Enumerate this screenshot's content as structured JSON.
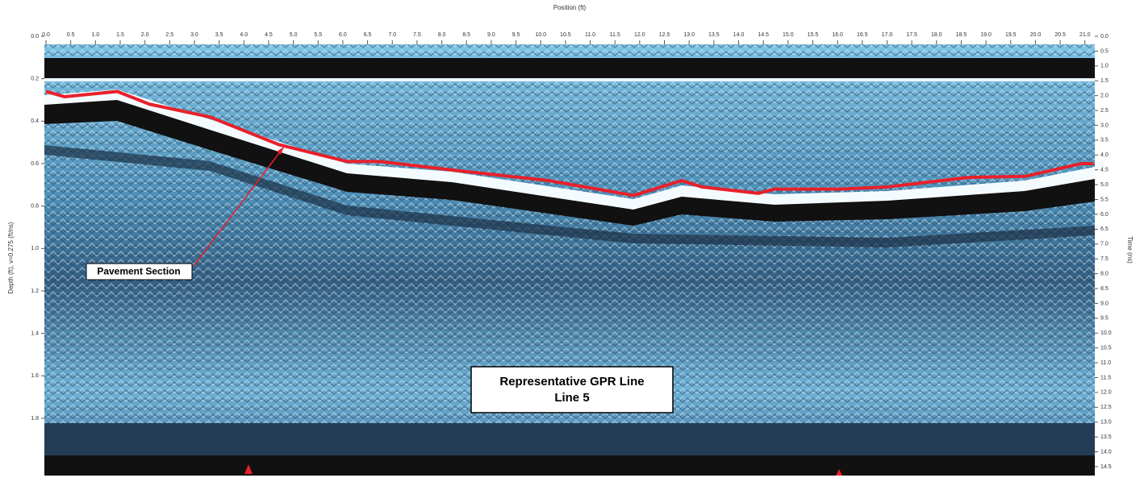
{
  "chart_data": {
    "type": "line",
    "xlabel": "Position (ft)",
    "ylabel": "Depth (ft), v=0.275 (ft/ns)",
    "y2label": "Time (ns)",
    "annotations": [
      "Pavement Section",
      "Representative GPR Line",
      "Line 5"
    ],
    "x": [
      0,
      0.38,
      1.44,
      2.09,
      3.31,
      4.7,
      6.08,
      6.74,
      8.2,
      10.16,
      11.88,
      12.85,
      13.26,
      14.4,
      14.73,
      16.04,
      17.01,
      18.65,
      19.79,
      20.93,
      21.17
    ],
    "series": [
      {
        "color": "#e8202a",
        "values": [
          0.26,
          0.285,
          0.26,
          0.32,
          0.38,
          0.51,
          0.59,
          0.59,
          0.63,
          0.68,
          0.75,
          0.68,
          0.71,
          0.74,
          0.72,
          0.72,
          0.71,
          0.665,
          0.66,
          0.6,
          0.6
        ]
      }
    ],
    "xlim": [
      0,
      21.2
    ],
    "ylim": [
      0,
      2.07
    ],
    "y2lim": [
      0,
      14.8
    ],
    "xticks": [
      {
        "value": 0,
        "label": "0.0"
      },
      {
        "value": 0.5,
        "label": "0.5"
      },
      {
        "value": 1,
        "label": "1.0"
      },
      {
        "value": 1.5,
        "label": "1.5"
      },
      {
        "value": 2,
        "label": "2.0"
      },
      {
        "value": 2.5,
        "label": "2.5"
      },
      {
        "value": 3,
        "label": "3.0"
      },
      {
        "value": 3.5,
        "label": "3.5"
      },
      {
        "value": 4,
        "label": "4.0"
      },
      {
        "value": 4.5,
        "label": "4.5"
      },
      {
        "value": 5,
        "label": "5.0"
      },
      {
        "value": 5.5,
        "label": "5.5"
      },
      {
        "value": 6,
        "label": "6.0"
      },
      {
        "value": 6.5,
        "label": "6.5"
      },
      {
        "value": 7,
        "label": "7.0"
      },
      {
        "value": 7.5,
        "label": "7.5"
      },
      {
        "value": 8,
        "label": "8.0"
      },
      {
        "value": 8.5,
        "label": "8.5"
      },
      {
        "value": 9,
        "label": "9.0"
      },
      {
        "value": 9.5,
        "label": "9.5"
      },
      {
        "value": 10,
        "label": "10.0"
      },
      {
        "value": 10.5,
        "label": "10.5"
      },
      {
        "value": 11,
        "label": "11.0"
      },
      {
        "value": 11.5,
        "label": "11.5"
      },
      {
        "value": 12,
        "label": "12.0"
      },
      {
        "value": 12.5,
        "label": "12.5"
      },
      {
        "value": 13,
        "label": "13.0"
      },
      {
        "value": 13.5,
        "label": "13.5"
      },
      {
        "value": 14,
        "label": "14.0"
      },
      {
        "value": 14.5,
        "label": "14.5"
      },
      {
        "value": 15,
        "label": "15.0"
      },
      {
        "value": 15.5,
        "label": "15.5"
      },
      {
        "value": 16,
        "label": "16.0"
      },
      {
        "value": 16.5,
        "label": "16.5"
      },
      {
        "value": 17,
        "label": "17.0"
      },
      {
        "value": 17.5,
        "label": "17.5"
      },
      {
        "value": 18,
        "label": "18.0"
      },
      {
        "value": 18.5,
        "label": "18.5"
      },
      {
        "value": 19,
        "label": "19.0"
      },
      {
        "value": 19.5,
        "label": "19.5"
      },
      {
        "value": 20,
        "label": "20.0"
      },
      {
        "value": 20.5,
        "label": "20.5"
      },
      {
        "value": 21,
        "label": "21.0"
      }
    ],
    "yticks": [
      {
        "value": 0,
        "label": "0.0"
      },
      {
        "value": 0.2,
        "label": "0.2"
      },
      {
        "value": 0.4,
        "label": "0.4"
      },
      {
        "value": 0.6,
        "label": "0.6"
      },
      {
        "value": 0.8,
        "label": "0.8"
      },
      {
        "value": 1,
        "label": "1.0"
      },
      {
        "value": 1.2,
        "label": "1.2"
      },
      {
        "value": 1.4,
        "label": "1.4"
      },
      {
        "value": 1.6,
        "label": "1.6"
      },
      {
        "value": 1.8,
        "label": "1.8"
      }
    ],
    "y2ticks": [
      {
        "value": 0,
        "label": "0.0"
      },
      {
        "value": 0.5,
        "label": "0.5"
      },
      {
        "value": 1,
        "label": "1.0"
      },
      {
        "value": 1.5,
        "label": "1.5"
      },
      {
        "value": 2,
        "label": "2.0"
      },
      {
        "value": 2.5,
        "label": "2.5"
      },
      {
        "value": 3,
        "label": "3.0"
      },
      {
        "value": 3.5,
        "label": "3.5"
      },
      {
        "value": 4,
        "label": "4.0"
      },
      {
        "value": 4.5,
        "label": "4.5"
      },
      {
        "value": 5,
        "label": "5.0"
      },
      {
        "value": 5.5,
        "label": "5.5"
      },
      {
        "value": 6,
        "label": "6.0"
      },
      {
        "value": 6.5,
        "label": "6.5"
      },
      {
        "value": 7,
        "label": "7.0"
      },
      {
        "value": 7.5,
        "label": "7.5"
      },
      {
        "value": 8,
        "label": "8.0"
      },
      {
        "value": 8.5,
        "label": "8.5"
      },
      {
        "value": 9,
        "label": "9.0"
      },
      {
        "value": 9.5,
        "label": "9.5"
      },
      {
        "value": 10,
        "label": "10.0"
      },
      {
        "value": 10.5,
        "label": "10.5"
      },
      {
        "value": 11,
        "label": "11.0"
      },
      {
        "value": 11.5,
        "label": "11.5"
      },
      {
        "value": 12,
        "label": "12.0"
      },
      {
        "value": 12.5,
        "label": "12.5"
      },
      {
        "value": 13,
        "label": "13.0"
      },
      {
        "value": 13.5,
        "label": "13.5"
      },
      {
        "value": 14,
        "label": "14.0"
      },
      {
        "value": 14.5,
        "label": "14.5"
      }
    ]
  }
}
